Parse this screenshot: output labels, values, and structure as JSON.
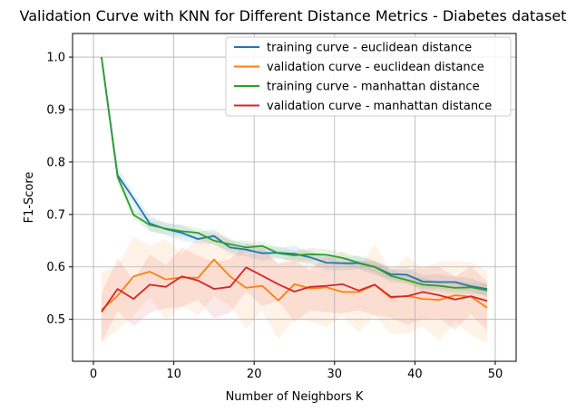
{
  "chart_data": {
    "type": "line",
    "title": "Validation Curve with KNN for Different Distance Metrics - Diabetes dataset",
    "xlabel": "Number of Neighbors K",
    "ylabel": "F1-Score",
    "xlim": [
      -2.6,
      52.6
    ],
    "ylim": [
      0.42,
      1.045
    ],
    "xticks": [
      0,
      10,
      20,
      30,
      40,
      50
    ],
    "yticks": [
      0.5,
      0.6,
      0.7,
      0.8,
      0.9,
      1.0
    ],
    "xtick_labels": [
      "0",
      "10",
      "20",
      "30",
      "40",
      "50"
    ],
    "ytick_labels": [
      "0.5",
      "0.6",
      "0.7",
      "0.8",
      "0.9",
      "1.0"
    ],
    "grid": true,
    "legend_position": "top-right",
    "x": [
      1,
      3,
      5,
      7,
      9,
      11,
      13,
      15,
      17,
      19,
      21,
      23,
      25,
      27,
      29,
      31,
      33,
      35,
      37,
      39,
      41,
      43,
      45,
      47,
      49
    ],
    "series": [
      {
        "name": "training curve - euclidean distance",
        "color": "#1f77b4",
        "values": [
          1.0,
          0.775,
          0.73,
          0.683,
          0.672,
          0.665,
          0.653,
          0.659,
          0.637,
          0.633,
          0.626,
          0.627,
          0.625,
          0.618,
          0.608,
          0.607,
          0.607,
          0.6,
          0.586,
          0.585,
          0.572,
          0.571,
          0.571,
          0.563,
          0.558
        ],
        "band": 0.012
      },
      {
        "name": "validation curve - euclidean distance",
        "color": "#ff7f0e",
        "values": [
          0.518,
          0.545,
          0.582,
          0.591,
          0.576,
          0.58,
          0.579,
          0.614,
          0.582,
          0.56,
          0.564,
          0.536,
          0.567,
          0.559,
          0.561,
          0.552,
          0.552,
          0.566,
          0.541,
          0.545,
          0.539,
          0.537,
          0.546,
          0.543,
          0.522
        ],
        "band": 0.06
      },
      {
        "name": "training curve - manhattan distance",
        "color": "#2ca02c",
        "values": [
          1.0,
          0.772,
          0.699,
          0.68,
          0.673,
          0.668,
          0.665,
          0.65,
          0.643,
          0.637,
          0.64,
          0.626,
          0.622,
          0.624,
          0.623,
          0.617,
          0.608,
          0.6,
          0.583,
          0.575,
          0.566,
          0.564,
          0.56,
          0.561,
          0.555
        ],
        "band": 0.01
      },
      {
        "name": "validation curve - manhattan distance",
        "color": "#d62728",
        "values": [
          0.514,
          0.558,
          0.539,
          0.566,
          0.562,
          0.582,
          0.574,
          0.558,
          0.562,
          0.599,
          0.583,
          0.567,
          0.553,
          0.562,
          0.564,
          0.567,
          0.555,
          0.566,
          0.543,
          0.544,
          0.552,
          0.546,
          0.538,
          0.544,
          0.535
        ],
        "band": 0.045
      }
    ]
  }
}
